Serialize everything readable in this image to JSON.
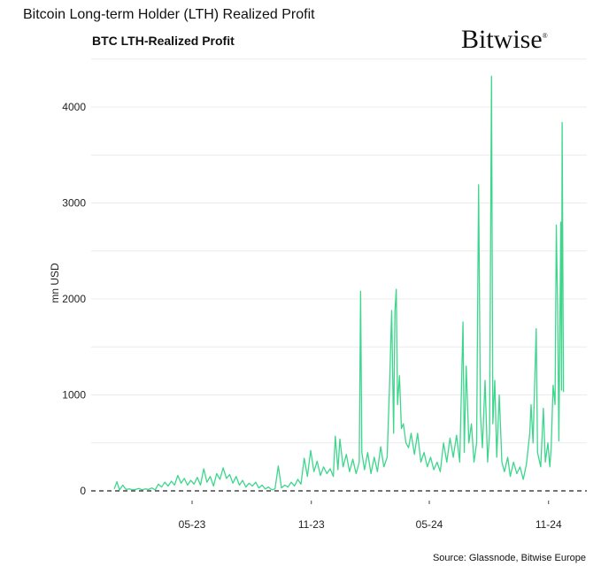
{
  "header": {
    "title": "Bitcoin Long-term Holder (LTH) Realized Profit",
    "logo_text": "Bitwise"
  },
  "footer": {
    "source": "Source: Glassnode, Bitwise Europe"
  },
  "chart_data": {
    "type": "line",
    "title": "BTC LTH-Realized Profit",
    "xlabel": "",
    "ylabel": "mn USD",
    "ylim": [
      0,
      4500
    ],
    "yticks": [
      0,
      1000,
      2000,
      3000,
      4000
    ],
    "xticks": [
      {
        "date": "2023-05-01",
        "label": "05-23"
      },
      {
        "date": "2023-11-01",
        "label": "11-23"
      },
      {
        "date": "2024-05-01",
        "label": "05-24"
      },
      {
        "date": "2024-11-01",
        "label": "11-24"
      }
    ],
    "grid": true,
    "zero_line": "dashed",
    "color": "#3dd68c",
    "series": [
      {
        "x": [
          "2023-01-01",
          "2023-01-05",
          "2023-01-09",
          "2023-01-14",
          "2023-01-19",
          "2023-01-24",
          "2023-01-29",
          "2023-02-03",
          "2023-02-08",
          "2023-02-13",
          "2023-02-18",
          "2023-02-23",
          "2023-02-28",
          "2023-03-05",
          "2023-03-10",
          "2023-03-15",
          "2023-03-20",
          "2023-03-25",
          "2023-03-30",
          "2023-04-04",
          "2023-04-09",
          "2023-04-14",
          "2023-04-19",
          "2023-04-24",
          "2023-04-29",
          "2023-05-04",
          "2023-05-09",
          "2023-05-14",
          "2023-05-19",
          "2023-05-24",
          "2023-05-29",
          "2023-06-03",
          "2023-06-08",
          "2023-06-13",
          "2023-06-18",
          "2023-06-23",
          "2023-06-28",
          "2023-07-03",
          "2023-07-08",
          "2023-07-13",
          "2023-07-18",
          "2023-07-23",
          "2023-07-28",
          "2023-08-02",
          "2023-08-07",
          "2023-08-12",
          "2023-08-17",
          "2023-08-22",
          "2023-08-27",
          "2023-09-01",
          "2023-09-06",
          "2023-09-11",
          "2023-09-16",
          "2023-09-21",
          "2023-09-26",
          "2023-10-01",
          "2023-10-06",
          "2023-10-11",
          "2023-10-16",
          "2023-10-21",
          "2023-10-26",
          "2023-10-31",
          "2023-11-05",
          "2023-11-10",
          "2023-11-15",
          "2023-11-20",
          "2023-11-25",
          "2023-11-30",
          "2023-12-05",
          "2023-12-08",
          "2023-12-12",
          "2023-12-15",
          "2023-12-20",
          "2023-12-25",
          "2023-12-30",
          "2024-01-04",
          "2024-01-09",
          "2024-01-14",
          "2024-01-16",
          "2024-01-18",
          "2024-01-22",
          "2024-01-27",
          "2024-02-01",
          "2024-02-06",
          "2024-02-11",
          "2024-02-16",
          "2024-02-21",
          "2024-02-26",
          "2024-03-01",
          "2024-03-04",
          "2024-03-07",
          "2024-03-09",
          "2024-03-11",
          "2024-03-13",
          "2024-03-16",
          "2024-03-19",
          "2024-03-22",
          "2024-03-26",
          "2024-03-30",
          "2024-04-03",
          "2024-04-08",
          "2024-04-13",
          "2024-04-18",
          "2024-04-23",
          "2024-04-28",
          "2024-05-03",
          "2024-05-08",
          "2024-05-13",
          "2024-05-18",
          "2024-05-23",
          "2024-05-28",
          "2024-06-02",
          "2024-06-07",
          "2024-06-12",
          "2024-06-17",
          "2024-06-22",
          "2024-06-24",
          "2024-06-27",
          "2024-07-01",
          "2024-07-05",
          "2024-07-09",
          "2024-07-13",
          "2024-07-16",
          "2024-07-19",
          "2024-07-22",
          "2024-07-26",
          "2024-07-30",
          "2024-08-02",
          "2024-08-05",
          "2024-08-07",
          "2024-08-10",
          "2024-08-13",
          "2024-08-17",
          "2024-08-21",
          "2024-08-25",
          "2024-08-30",
          "2024-09-03",
          "2024-09-08",
          "2024-09-13",
          "2024-09-18",
          "2024-09-23",
          "2024-09-28",
          "2024-10-03",
          "2024-10-05",
          "2024-10-08",
          "2024-10-13",
          "2024-10-15",
          "2024-10-20",
          "2024-10-24",
          "2024-10-27",
          "2024-10-31",
          "2024-11-03",
          "2024-11-05",
          "2024-11-08",
          "2024-11-11",
          "2024-11-13",
          "2024-11-15",
          "2024-11-17",
          "2024-11-20",
          "2024-11-21",
          "2024-11-22",
          "2024-11-24"
        ],
        "y": [
          20,
          95,
          10,
          60,
          15,
          20,
          10,
          15,
          25,
          10,
          20,
          15,
          30,
          10,
          70,
          40,
          90,
          50,
          100,
          60,
          160,
          80,
          130,
          60,
          110,
          70,
          140,
          60,
          230,
          90,
          150,
          50,
          180,
          120,
          240,
          130,
          170,
          80,
          150,
          60,
          110,
          40,
          80,
          50,
          90,
          30,
          60,
          20,
          40,
          10,
          20,
          260,
          30,
          60,
          40,
          90,
          50,
          120,
          70,
          340,
          150,
          420,
          200,
          310,
          160,
          250,
          180,
          230,
          150,
          570,
          220,
          540,
          250,
          380,
          200,
          330,
          180,
          300,
          2080,
          400,
          220,
          400,
          180,
          350,
          200,
          460,
          250,
          350,
          1150,
          1880,
          600,
          1870,
          2100,
          900,
          1200,
          650,
          700,
          500,
          450,
          600,
          380,
          600,
          300,
          400,
          250,
          350,
          220,
          300,
          200,
          500,
          300,
          550,
          350,
          580,
          300,
          1760,
          400,
          1300,
          500,
          700,
          300,
          500,
          3190,
          800,
          450,
          1150,
          300,
          600,
          4320,
          700,
          1150,
          350,
          1000,
          300,
          200,
          350,
          150,
          300,
          180,
          250,
          120,
          280,
          600,
          900,
          500,
          1690,
          400,
          250,
          860,
          300,
          500,
          250,
          450,
          1100,
          900,
          2770,
          1900,
          520,
          2800,
          1050,
          3840,
          1030
        ]
      }
    ]
  }
}
